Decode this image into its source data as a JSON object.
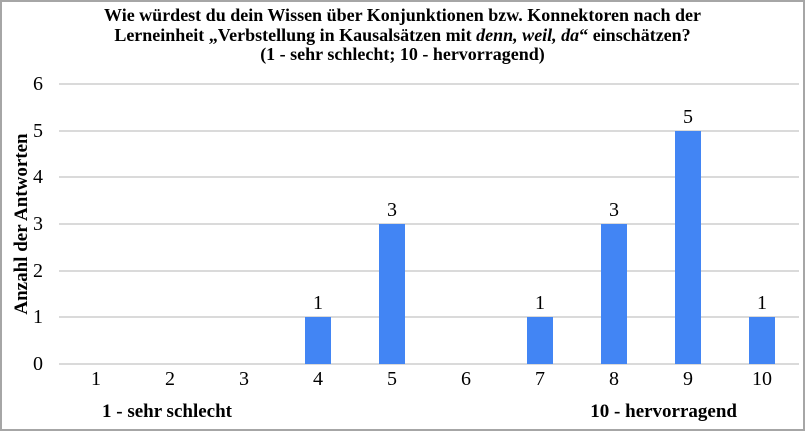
{
  "title": {
    "line1": "Wie würdest du dein Wissen über Konjunktionen bzw. Konnektoren nach der",
    "line2_pre": "Lerneinheit „Verbstellung in Kausalsätzen mit ",
    "line2_italic": "denn, weil, da",
    "line2_post": "“ einschätzen?",
    "line3": "(1 - sehr schlecht; 10 - hervorragend)"
  },
  "chart_data": {
    "type": "bar",
    "categories": [
      "1",
      "2",
      "3",
      "4",
      "5",
      "6",
      "7",
      "8",
      "9",
      "10"
    ],
    "values": [
      0,
      0,
      0,
      1,
      3,
      0,
      1,
      3,
      5,
      1
    ],
    "title": "Wie würdest du dein Wissen über Konjunktionen bzw. Konnektoren nach der Lerneinheit „Verbstellung in Kausalsätzen mit denn, weil, da“ einschätzen? (1 - sehr schlecht; 10 - hervorragend)",
    "xlabel": "",
    "ylabel": "Anzahl der Antworten",
    "xlabel_left": "1 - sehr schlecht",
    "xlabel_right": "10 - hervorragend",
    "ylim": [
      0,
      6
    ],
    "yticks": [
      0,
      1,
      2,
      3,
      4,
      5,
      6
    ],
    "grid": "horizontal",
    "legend": "none",
    "data_labels": true,
    "colors": {
      "bar": "#4285F4",
      "gridline": "#DADADA",
      "text": "#000000",
      "border": "#A6A6A6",
      "background": "#FFFFFF"
    }
  }
}
